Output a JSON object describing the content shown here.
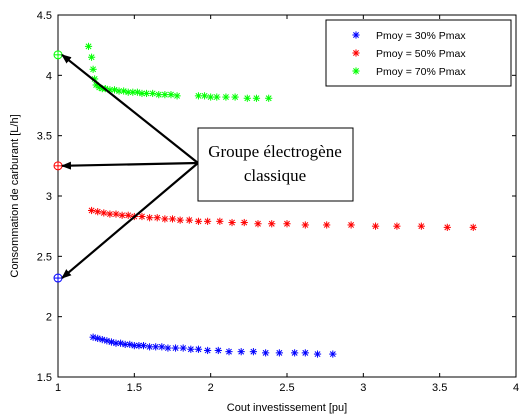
{
  "chart_data": {
    "type": "scatter",
    "xlabel": "Cout investissement [pu]",
    "ylabel": "Consommation de carburant [L/h]",
    "xlim": [
      1,
      4
    ],
    "ylim": [
      1.5,
      4.5
    ],
    "xticks": [
      1,
      1.5,
      2,
      2.5,
      3,
      3.5,
      4
    ],
    "yticks": [
      1.5,
      2,
      2.5,
      3,
      3.5,
      4,
      4.5
    ],
    "xtick_labels": [
      "1",
      "1.5",
      "2",
      "2.5",
      "3",
      "3.5",
      "4"
    ],
    "ytick_labels": [
      "1.5",
      "2",
      "2.5",
      "3",
      "3.5",
      "4",
      "4.5"
    ],
    "grid": false,
    "legend_position": "top-right",
    "series": [
      {
        "name": "Pmoy = 30% Pmax",
        "color": "#0000ff",
        "marker": "star",
        "x": [
          1.23,
          1.26,
          1.29,
          1.32,
          1.35,
          1.38,
          1.41,
          1.44,
          1.47,
          1.5,
          1.53,
          1.56,
          1.6,
          1.64,
          1.68,
          1.72,
          1.77,
          1.82,
          1.87,
          1.92,
          1.98,
          2.05,
          2.12,
          2.2,
          2.28,
          2.36,
          2.45,
          2.55,
          2.62,
          2.7,
          2.8
        ],
        "y": [
          1.83,
          1.82,
          1.81,
          1.8,
          1.79,
          1.78,
          1.78,
          1.77,
          1.77,
          1.76,
          1.76,
          1.76,
          1.75,
          1.75,
          1.75,
          1.74,
          1.74,
          1.74,
          1.73,
          1.73,
          1.72,
          1.72,
          1.71,
          1.71,
          1.71,
          1.7,
          1.7,
          1.7,
          1.7,
          1.69,
          1.69
        ]
      },
      {
        "name": "Pmoy = 50% Pmax",
        "color": "#ff0000",
        "marker": "star",
        "x": [
          1.22,
          1.26,
          1.3,
          1.34,
          1.38,
          1.42,
          1.46,
          1.5,
          1.55,
          1.6,
          1.65,
          1.7,
          1.75,
          1.8,
          1.86,
          1.92,
          1.98,
          2.06,
          2.14,
          2.22,
          2.31,
          2.4,
          2.5,
          2.62,
          2.76,
          2.92,
          3.08,
          3.22,
          3.38,
          3.55,
          3.72
        ],
        "y": [
          2.88,
          2.87,
          2.86,
          2.85,
          2.85,
          2.84,
          2.84,
          2.83,
          2.83,
          2.82,
          2.82,
          2.81,
          2.81,
          2.8,
          2.8,
          2.79,
          2.79,
          2.79,
          2.78,
          2.78,
          2.77,
          2.77,
          2.77,
          2.76,
          2.76,
          2.76,
          2.75,
          2.75,
          2.75,
          2.74,
          2.74
        ]
      },
      {
        "name": "Pmoy = 70% Pmax",
        "color": "#00ff00",
        "marker": "star",
        "x": [
          1.2,
          1.22,
          1.23,
          1.24,
          1.25,
          1.27,
          1.29,
          1.31,
          1.34,
          1.37,
          1.4,
          1.43,
          1.46,
          1.49,
          1.52,
          1.55,
          1.58,
          1.62,
          1.66,
          1.7,
          1.74,
          1.78,
          1.92,
          1.96,
          2.0,
          2.04,
          2.1,
          2.16,
          2.24,
          2.3,
          2.38
        ],
        "y": [
          4.24,
          4.15,
          4.05,
          3.97,
          3.92,
          3.9,
          3.89,
          3.89,
          3.88,
          3.88,
          3.87,
          3.87,
          3.86,
          3.86,
          3.86,
          3.85,
          3.85,
          3.85,
          3.84,
          3.84,
          3.84,
          3.83,
          3.83,
          3.83,
          3.82,
          3.82,
          3.82,
          3.82,
          3.81,
          3.81,
          3.81
        ]
      }
    ],
    "classic_points": [
      {
        "x": 1.0,
        "y": 2.32,
        "color": "#0000ff"
      },
      {
        "x": 1.0,
        "y": 3.25,
        "color": "#ff0000"
      },
      {
        "x": 1.0,
        "y": 4.17,
        "color": "#00ff00"
      }
    ],
    "annotation": {
      "lines": [
        "Groupe électrogène",
        "classique"
      ]
    }
  }
}
